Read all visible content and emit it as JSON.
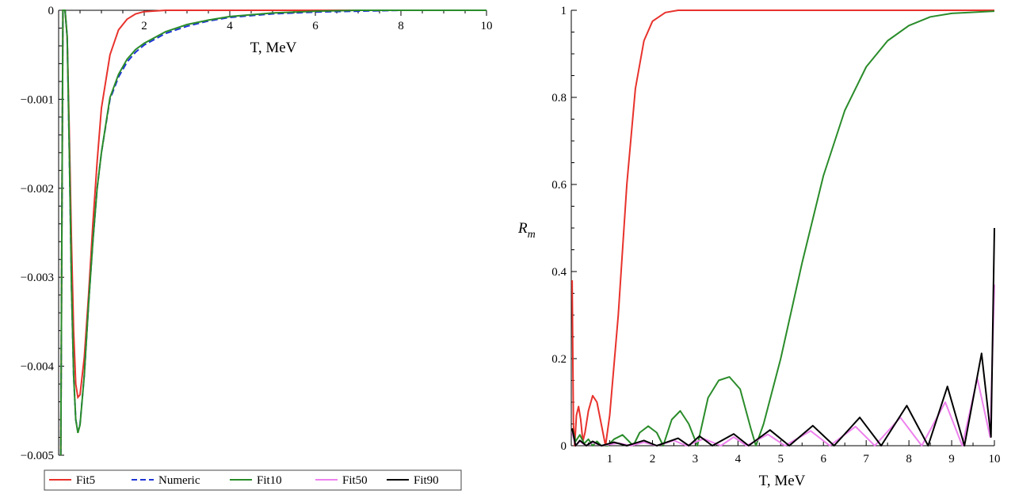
{
  "chart_data": [
    {
      "type": "line",
      "xlabel": "T, MeV",
      "ylabel": "",
      "xlim": [
        0,
        10
      ],
      "ylim": [
        -0.005,
        0
      ],
      "x_ticks": [
        "2",
        "4",
        "6",
        "8",
        "10"
      ],
      "y_ticks": [
        "0",
        "−0.001",
        "−0.002",
        "−0.003",
        "−0.004",
        "−0.005"
      ],
      "legend_placement": "bottom",
      "series": [
        {
          "name": "Fit5",
          "color": "#e8322c",
          "style": "solid",
          "points": [
            [
              0.05,
              -0.005
            ],
            [
              0.1,
              0
            ],
            [
              0.15,
              0
            ],
            [
              0.2,
              -0.0003
            ],
            [
              0.25,
              -0.0014
            ],
            [
              0.3,
              -0.0026
            ],
            [
              0.35,
              -0.0036
            ],
            [
              0.4,
              -0.0042
            ],
            [
              0.45,
              -0.00435
            ],
            [
              0.5,
              -0.00432
            ],
            [
              0.6,
              -0.0039
            ],
            [
              0.7,
              -0.0032
            ],
            [
              0.8,
              -0.0024
            ],
            [
              0.9,
              -0.0017
            ],
            [
              1.0,
              -0.0011
            ],
            [
              1.2,
              -0.0005
            ],
            [
              1.4,
              -0.00022
            ],
            [
              1.6,
              -0.0001
            ],
            [
              1.8,
              -4e-05
            ],
            [
              2.0,
              -1.5e-05
            ],
            [
              2.5,
              0
            ],
            [
              10,
              0
            ]
          ]
        },
        {
          "name": "Numeric",
          "color": "#1f35d6",
          "style": "dashed",
          "points": [
            [
              0.05,
              -0.005
            ],
            [
              0.1,
              0
            ],
            [
              0.15,
              0
            ],
            [
              0.2,
              -0.0003
            ],
            [
              0.25,
              -0.0016
            ],
            [
              0.3,
              -0.0031
            ],
            [
              0.35,
              -0.0041
            ],
            [
              0.4,
              -0.0046
            ],
            [
              0.45,
              -0.00473
            ],
            [
              0.5,
              -0.00465
            ],
            [
              0.6,
              -0.0041
            ],
            [
              0.7,
              -0.0033
            ],
            [
              0.8,
              -0.0026
            ],
            [
              0.9,
              -0.002
            ],
            [
              1.0,
              -0.0016
            ],
            [
              1.2,
              -0.001
            ],
            [
              1.4,
              -0.00075
            ],
            [
              1.6,
              -0.00058
            ],
            [
              1.8,
              -0.00047
            ],
            [
              2.0,
              -0.00039
            ],
            [
              2.5,
              -0.00026
            ],
            [
              3.0,
              -0.00018
            ],
            [
              3.5,
              -0.00012
            ],
            [
              4.0,
              -8e-05
            ],
            [
              5.0,
              -4e-05
            ],
            [
              6.0,
              -2e-05
            ],
            [
              7.0,
              -1e-05
            ],
            [
              8.0,
              0
            ],
            [
              10,
              0
            ]
          ]
        },
        {
          "name": "Fit10",
          "color": "#2a8c2a",
          "style": "solid",
          "points": [
            [
              0.05,
              -0.005
            ],
            [
              0.1,
              0
            ],
            [
              0.15,
              0
            ],
            [
              0.2,
              -0.0003
            ],
            [
              0.25,
              -0.0016
            ],
            [
              0.3,
              -0.0031
            ],
            [
              0.35,
              -0.0041
            ],
            [
              0.4,
              -0.0046
            ],
            [
              0.45,
              -0.00475
            ],
            [
              0.5,
              -0.00466
            ],
            [
              0.6,
              -0.0041
            ],
            [
              0.7,
              -0.0033
            ],
            [
              0.8,
              -0.0026
            ],
            [
              0.9,
              -0.002
            ],
            [
              1.0,
              -0.0016
            ],
            [
              1.2,
              -0.00098
            ],
            [
              1.4,
              -0.00072
            ],
            [
              1.6,
              -0.00055
            ],
            [
              1.8,
              -0.00044
            ],
            [
              2.0,
              -0.00037
            ],
            [
              2.5,
              -0.00024
            ],
            [
              3.0,
              -0.00016
            ],
            [
              3.5,
              -0.00011
            ],
            [
              4.0,
              -7e-05
            ],
            [
              5.0,
              -3e-05
            ],
            [
              6.0,
              -1e-05
            ],
            [
              7.0,
              0
            ],
            [
              10,
              0
            ]
          ]
        },
        {
          "name": "Fit50",
          "color": "#ee82ee",
          "style": "solid",
          "points": []
        },
        {
          "name": "Fit90",
          "color": "#000000",
          "style": "solid",
          "points": []
        }
      ]
    },
    {
      "type": "line",
      "xlabel": "T, MeV",
      "ylabel": "R_m",
      "ylabel_main": "R",
      "ylabel_sub": "m",
      "xlim": [
        0.1,
        10
      ],
      "ylim": [
        0,
        1
      ],
      "x_ticks": [
        "1",
        "2",
        "3",
        "4",
        "5",
        "6",
        "7",
        "8",
        "9",
        "10"
      ],
      "y_ticks": [
        "0",
        "0.2",
        "0.4",
        "0.6",
        "0.8",
        "1"
      ],
      "series": [
        {
          "name": "Fit5",
          "color": "#e8322c",
          "points": [
            [
              0.12,
              0.38
            ],
            [
              0.15,
              0.05
            ],
            [
              0.18,
              0.0
            ],
            [
              0.22,
              0.07
            ],
            [
              0.27,
              0.09
            ],
            [
              0.32,
              0.06
            ],
            [
              0.37,
              0.01
            ],
            [
              0.42,
              0.03
            ],
            [
              0.5,
              0.08
            ],
            [
              0.6,
              0.115
            ],
            [
              0.7,
              0.1
            ],
            [
              0.8,
              0.05
            ],
            [
              0.9,
              0.0
            ],
            [
              1.0,
              0.07
            ],
            [
              1.2,
              0.3
            ],
            [
              1.4,
              0.6
            ],
            [
              1.6,
              0.82
            ],
            [
              1.8,
              0.93
            ],
            [
              2.0,
              0.975
            ],
            [
              2.3,
              0.995
            ],
            [
              2.6,
              1.0
            ],
            [
              10,
              1.0
            ]
          ]
        },
        {
          "name": "Fit10",
          "color": "#2a8c2a",
          "points": [
            [
              0.12,
              0.04
            ],
            [
              0.2,
              0.01
            ],
            [
              0.3,
              0.025
            ],
            [
              0.4,
              0.005
            ],
            [
              0.5,
              0.015
            ],
            [
              0.6,
              0.0
            ],
            [
              0.7,
              0.01
            ],
            [
              0.8,
              0.0
            ],
            [
              0.95,
              0.0
            ],
            [
              1.1,
              0.015
            ],
            [
              1.3,
              0.025
            ],
            [
              1.45,
              0.01
            ],
            [
              1.55,
              0.0
            ],
            [
              1.7,
              0.03
            ],
            [
              1.9,
              0.045
            ],
            [
              2.1,
              0.03
            ],
            [
              2.25,
              0.0
            ],
            [
              2.45,
              0.06
            ],
            [
              2.65,
              0.08
            ],
            [
              2.85,
              0.05
            ],
            [
              3.05,
              0.0
            ],
            [
              3.3,
              0.11
            ],
            [
              3.55,
              0.15
            ],
            [
              3.8,
              0.158
            ],
            [
              4.05,
              0.13
            ],
            [
              4.3,
              0.04
            ],
            [
              4.42,
              0.0
            ],
            [
              4.6,
              0.05
            ],
            [
              5.0,
              0.2
            ],
            [
              5.5,
              0.42
            ],
            [
              6.0,
              0.62
            ],
            [
              6.5,
              0.77
            ],
            [
              7.0,
              0.87
            ],
            [
              7.5,
              0.93
            ],
            [
              8.0,
              0.965
            ],
            [
              8.5,
              0.985
            ],
            [
              9.0,
              0.993
            ],
            [
              10,
              0.998
            ]
          ]
        },
        {
          "name": "Fit50",
          "color": "#ee82ee",
          "points": [
            [
              0.12,
              0.03
            ],
            [
              0.2,
              0.0
            ],
            [
              0.3,
              0.01
            ],
            [
              0.45,
              0.0
            ],
            [
              0.6,
              0.008
            ],
            [
              0.8,
              0.0
            ],
            [
              1.2,
              0.006
            ],
            [
              1.5,
              0.0
            ],
            [
              1.8,
              0.008
            ],
            [
              2.1,
              0.0
            ],
            [
              2.5,
              0.012
            ],
            [
              2.8,
              0.0
            ],
            [
              3.2,
              0.016
            ],
            [
              3.6,
              0.0
            ],
            [
              3.9,
              0.02
            ],
            [
              4.2,
              0.0
            ],
            [
              4.7,
              0.026
            ],
            [
              5.1,
              0.0
            ],
            [
              5.7,
              0.034
            ],
            [
              6.15,
              0.0
            ],
            [
              6.75,
              0.044
            ],
            [
              7.2,
              0.0
            ],
            [
              7.8,
              0.065
            ],
            [
              8.3,
              0.0
            ],
            [
              8.85,
              0.1
            ],
            [
              9.25,
              0.0
            ],
            [
              9.6,
              0.155
            ],
            [
              9.9,
              0.02
            ],
            [
              10,
              0.37
            ]
          ]
        },
        {
          "name": "Fit90",
          "color": "#000000",
          "points": [
            [
              0.12,
              0.04
            ],
            [
              0.2,
              0.0
            ],
            [
              0.3,
              0.012
            ],
            [
              0.45,
              0.0
            ],
            [
              0.6,
              0.01
            ],
            [
              0.8,
              0.0
            ],
            [
              1.1,
              0.008
            ],
            [
              1.4,
              0.0
            ],
            [
              1.8,
              0.012
            ],
            [
              2.1,
              0.0
            ],
            [
              2.6,
              0.017
            ],
            [
              2.85,
              0.0
            ],
            [
              3.1,
              0.022
            ],
            [
              3.4,
              0.0
            ],
            [
              3.9,
              0.027
            ],
            [
              4.25,
              0.0
            ],
            [
              4.75,
              0.036
            ],
            [
              5.2,
              0.0
            ],
            [
              5.75,
              0.046
            ],
            [
              6.25,
              0.0
            ],
            [
              6.85,
              0.065
            ],
            [
              7.35,
              0.0
            ],
            [
              7.95,
              0.092
            ],
            [
              8.45,
              0.0
            ],
            [
              8.9,
              0.136
            ],
            [
              9.3,
              0.0
            ],
            [
              9.7,
              0.212
            ],
            [
              9.92,
              0.02
            ],
            [
              10,
              0.5
            ]
          ]
        }
      ]
    }
  ]
}
